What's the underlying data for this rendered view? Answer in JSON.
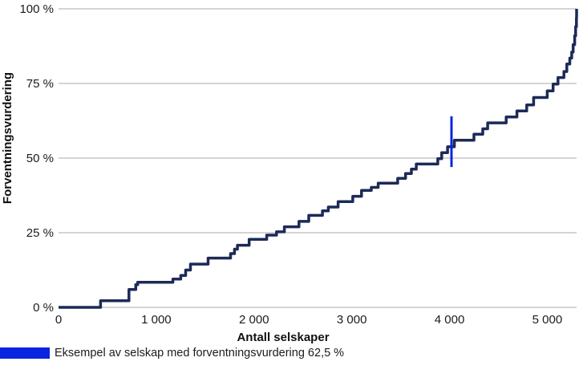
{
  "chart_data": {
    "type": "line",
    "subtype": "step",
    "title": "",
    "xlabel": "Antall selskaper",
    "ylabel": "Forventningsvurdering",
    "xlim": [
      0,
      5300
    ],
    "ylim": [
      0,
      100
    ],
    "x_ticks": [
      0,
      1000,
      2000,
      3000,
      4000,
      5000
    ],
    "x_tick_labels": [
      "0",
      "1 000",
      "2 000",
      "3 000",
      "4 000",
      "5 000"
    ],
    "y_ticks": [
      0,
      25,
      50,
      75,
      100
    ],
    "y_tick_labels": [
      "0 %",
      "25 %",
      "50 %",
      "75 %",
      "100 %"
    ],
    "grid": "horizontal",
    "series": [
      {
        "name": "Forventningsvurdering",
        "color": "#1c2a57",
        "points": [
          [
            0,
            0
          ],
          [
            430,
            0
          ],
          [
            430,
            2.2
          ],
          [
            720,
            2.2
          ],
          [
            720,
            6
          ],
          [
            790,
            6
          ],
          [
            790,
            7.6
          ],
          [
            810,
            7.6
          ],
          [
            810,
            8.4
          ],
          [
            1170,
            8.4
          ],
          [
            1170,
            9.5
          ],
          [
            1250,
            9.5
          ],
          [
            1250,
            10.7
          ],
          [
            1300,
            10.7
          ],
          [
            1300,
            12.5
          ],
          [
            1350,
            12.5
          ],
          [
            1350,
            14.5
          ],
          [
            1530,
            14.5
          ],
          [
            1530,
            16.5
          ],
          [
            1760,
            16.5
          ],
          [
            1760,
            18
          ],
          [
            1800,
            18
          ],
          [
            1800,
            19.5
          ],
          [
            1830,
            19.5
          ],
          [
            1830,
            20.8
          ],
          [
            1950,
            20.8
          ],
          [
            1950,
            22.8
          ],
          [
            2130,
            22.8
          ],
          [
            2130,
            24.2
          ],
          [
            2230,
            24.2
          ],
          [
            2230,
            25.3
          ],
          [
            2310,
            25.3
          ],
          [
            2310,
            27
          ],
          [
            2460,
            27
          ],
          [
            2460,
            28.8
          ],
          [
            2560,
            28.8
          ],
          [
            2560,
            30.8
          ],
          [
            2700,
            30.8
          ],
          [
            2700,
            32.3
          ],
          [
            2760,
            32.3
          ],
          [
            2760,
            33.6
          ],
          [
            2860,
            33.6
          ],
          [
            2860,
            35.4
          ],
          [
            3010,
            35.4
          ],
          [
            3010,
            37.2
          ],
          [
            3100,
            37.2
          ],
          [
            3100,
            39.2
          ],
          [
            3200,
            39.2
          ],
          [
            3200,
            40.2
          ],
          [
            3270,
            40.2
          ],
          [
            3270,
            41.6
          ],
          [
            3470,
            41.6
          ],
          [
            3470,
            43.2
          ],
          [
            3550,
            43.2
          ],
          [
            3550,
            44.8
          ],
          [
            3610,
            44.8
          ],
          [
            3610,
            46.3
          ],
          [
            3660,
            46.3
          ],
          [
            3660,
            48
          ],
          [
            3880,
            48
          ],
          [
            3880,
            49.8
          ],
          [
            3920,
            49.8
          ],
          [
            3920,
            51.8
          ],
          [
            3980,
            51.8
          ],
          [
            3980,
            53.8
          ],
          [
            4050,
            53.8
          ],
          [
            4050,
            56
          ],
          [
            4250,
            56
          ],
          [
            4250,
            58
          ],
          [
            4340,
            58
          ],
          [
            4340,
            59.8
          ],
          [
            4390,
            59.8
          ],
          [
            4390,
            61.8
          ],
          [
            4580,
            61.8
          ],
          [
            4580,
            63.8
          ],
          [
            4690,
            63.8
          ],
          [
            4690,
            65.8
          ],
          [
            4790,
            65.8
          ],
          [
            4790,
            67.8
          ],
          [
            4860,
            67.8
          ],
          [
            4860,
            70.3
          ],
          [
            5000,
            70.3
          ],
          [
            5000,
            72.5
          ],
          [
            5060,
            72.5
          ],
          [
            5060,
            74.8
          ],
          [
            5110,
            74.8
          ],
          [
            5110,
            77
          ],
          [
            5170,
            77
          ],
          [
            5170,
            79
          ],
          [
            5200,
            79
          ],
          [
            5200,
            81.5
          ],
          [
            5230,
            81.5
          ],
          [
            5230,
            83.5
          ],
          [
            5250,
            83.5
          ],
          [
            5250,
            85.5
          ],
          [
            5265,
            85.5
          ],
          [
            5265,
            88
          ],
          [
            5280,
            88
          ],
          [
            5280,
            91
          ],
          [
            5290,
            91
          ],
          [
            5290,
            94
          ],
          [
            5298,
            94
          ],
          [
            5298,
            97
          ],
          [
            5300,
            97
          ],
          [
            5300,
            100
          ]
        ]
      }
    ],
    "annotation": {
      "label": "Eksempel av selskap med forventningsvurdering 62,5 %",
      "x": 4020,
      "y_from": 47,
      "y_to": 64,
      "color": "#0a24e0"
    }
  }
}
